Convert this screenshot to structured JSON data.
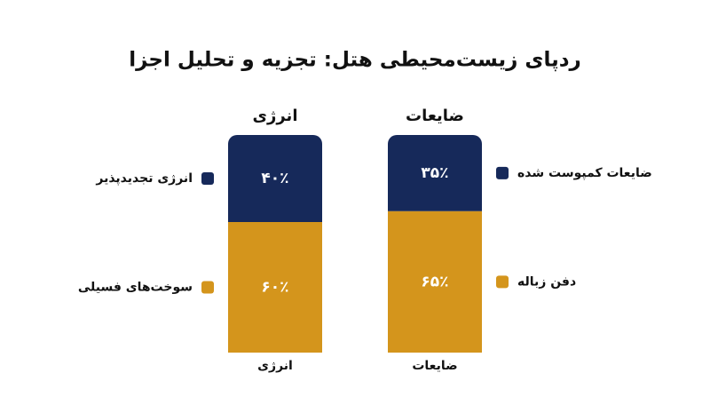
{
  "chart_data": {
    "type": "stacked-bar",
    "title": "ردپای زیست‌محیطی هتل: تجزیه و تحلیل اجزا",
    "categories": [
      "انرژی",
      "ضایعات"
    ],
    "ylim": [
      0,
      100
    ],
    "series": [
      {
        "name": "سوخت‌های فسیلی",
        "color": "#d4951c",
        "values": [
          60,
          null
        ],
        "value_labels": [
          "۶۰٪",
          null
        ]
      },
      {
        "name": "انرژی تجدیدپذیر",
        "color": "#16295a",
        "values": [
          40,
          null
        ],
        "value_labels": [
          "۴۰٪",
          null
        ]
      },
      {
        "name": "دفن زباله",
        "color": "#d4951c",
        "values": [
          null,
          65
        ],
        "value_labels": [
          null,
          "۶۵٪"
        ]
      },
      {
        "name": "ضایعات کمپوست شده",
        "color": "#16295a",
        "values": [
          null,
          35
        ],
        "value_labels": [
          null,
          "۳۵٪"
        ]
      }
    ]
  }
}
